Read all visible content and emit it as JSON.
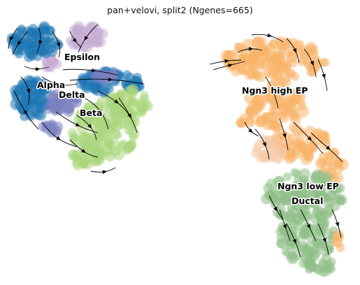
{
  "chart_data": {
    "type": "scatter",
    "title": "pan+velovi, split2 (Ngenes=665)",
    "xlabel": "",
    "ylabel": "",
    "grid": false,
    "axes_visible": false,
    "overlay": "velocity streamlines",
    "clusters": [
      {
        "name": "Epsilon",
        "color": "#c7abd4"
      },
      {
        "name": "Alpha",
        "color": "#1f77b4"
      },
      {
        "name": "Delta",
        "color": "#7c7fbf"
      },
      {
        "name": "Beta",
        "color": "#a9d67c"
      },
      {
        "name": "Ngn3 high EP",
        "color": "#f7b46a"
      },
      {
        "name": "Ngn3 low EP",
        "color": "#f6c8a5"
      },
      {
        "name": "Ductal",
        "color": "#8fbf88"
      }
    ],
    "labels": [
      "Epsilon",
      "Alpha",
      "Delta",
      "Beta",
      "Ngn3 high EP",
      "Ngn3 low EP",
      "Ductal"
    ]
  }
}
